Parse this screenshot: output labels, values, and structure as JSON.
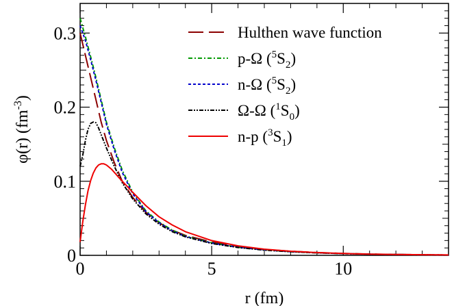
{
  "chart_data": {
    "type": "line",
    "xlabel": "r (fm)",
    "ylabel_parts": {
      "main": "φ(r) (fm",
      "exp": "-3",
      "close": ")"
    },
    "xlim": [
      0,
      14
    ],
    "ylim": [
      0,
      0.34
    ],
    "x_ticks": [
      0,
      5,
      10
    ],
    "y_ticks": [
      0,
      0.1,
      0.2,
      0.3
    ],
    "y_tick_labels": [
      "0",
      "0.1",
      "0.2",
      "0.3"
    ],
    "grid": false,
    "legend_placement": "top-right",
    "series": [
      {
        "name": "Hulthen wave function",
        "legend": {
          "main": "Hulthen wave function",
          "sup": "",
          "sub": "",
          "tail": ""
        },
        "color": "#8b0000",
        "dash": "22,8",
        "points": [
          [
            0,
            0.3
          ],
          [
            0.2,
            0.27
          ],
          [
            0.4,
            0.24
          ],
          [
            0.6,
            0.21
          ],
          [
            0.8,
            0.18
          ],
          [
            1.0,
            0.155
          ],
          [
            1.3,
            0.125
          ],
          [
            1.6,
            0.1
          ],
          [
            2.0,
            0.078
          ],
          [
            2.5,
            0.058
          ],
          [
            3.0,
            0.044
          ],
          [
            3.5,
            0.034
          ],
          [
            4.0,
            0.027
          ],
          [
            5.0,
            0.018
          ],
          [
            6.0,
            0.012
          ],
          [
            7.0,
            0.008
          ],
          [
            8.0,
            0.0055
          ],
          [
            9.0,
            0.0038
          ],
          [
            10.0,
            0.0026
          ],
          [
            11.0,
            0.0018
          ],
          [
            12.0,
            0.0012
          ],
          [
            13.0,
            0.0008
          ],
          [
            14.0,
            0.0005
          ]
        ]
      },
      {
        "name": "p-Ω (5S2)",
        "legend": {
          "main": "p-Ω (",
          "sup": "5",
          "sub": "2",
          "tail": ")"
        },
        "color": "#009900",
        "dash": "6,3,2,3",
        "points": [
          [
            0,
            0.32
          ],
          [
            0.2,
            0.295
          ],
          [
            0.4,
            0.268
          ],
          [
            0.6,
            0.24
          ],
          [
            0.8,
            0.21
          ],
          [
            1.0,
            0.18
          ],
          [
            1.3,
            0.145
          ],
          [
            1.6,
            0.115
          ],
          [
            2.0,
            0.085
          ],
          [
            2.5,
            0.06
          ],
          [
            3.0,
            0.045
          ],
          [
            3.5,
            0.034
          ],
          [
            4.0,
            0.026
          ],
          [
            5.0,
            0.017
          ],
          [
            6.0,
            0.011
          ],
          [
            7.0,
            0.0075
          ],
          [
            8.0,
            0.005
          ],
          [
            9.0,
            0.0034
          ],
          [
            10.0,
            0.0023
          ],
          [
            11.0,
            0.0016
          ],
          [
            12.0,
            0.0011
          ],
          [
            13.0,
            0.0007
          ],
          [
            14.0,
            0.0005
          ]
        ]
      },
      {
        "name": "n-Ω (5S2)",
        "legend": {
          "main": "n-Ω (",
          "sup": "5",
          "sub": "2",
          "tail": ")"
        },
        "color": "#0000cc",
        "dash": "4,3",
        "points": [
          [
            0,
            0.31
          ],
          [
            0.2,
            0.29
          ],
          [
            0.4,
            0.264
          ],
          [
            0.6,
            0.236
          ],
          [
            0.8,
            0.207
          ],
          [
            1.0,
            0.177
          ],
          [
            1.3,
            0.142
          ],
          [
            1.6,
            0.112
          ],
          [
            2.0,
            0.083
          ],
          [
            2.5,
            0.059
          ],
          [
            3.0,
            0.044
          ],
          [
            3.5,
            0.033
          ],
          [
            4.0,
            0.0255
          ],
          [
            5.0,
            0.0165
          ],
          [
            6.0,
            0.011
          ],
          [
            7.0,
            0.0074
          ],
          [
            8.0,
            0.005
          ],
          [
            9.0,
            0.0034
          ],
          [
            10.0,
            0.0023
          ],
          [
            11.0,
            0.0016
          ],
          [
            12.0,
            0.0011
          ],
          [
            13.0,
            0.0007
          ],
          [
            14.0,
            0.0005
          ]
        ]
      },
      {
        "name": "Ω-Ω (1S0)",
        "legend": {
          "main": "Ω-Ω (",
          "sup": "1",
          "sub": "0",
          "tail": ")"
        },
        "color": "#000000",
        "dash": "6,2,2,2,2,2",
        "points": [
          [
            0,
            0.12
          ],
          [
            0.1,
            0.135
          ],
          [
            0.2,
            0.155
          ],
          [
            0.3,
            0.17
          ],
          [
            0.4,
            0.178
          ],
          [
            0.5,
            0.18
          ],
          [
            0.6,
            0.179
          ],
          [
            0.7,
            0.172
          ],
          [
            0.8,
            0.163
          ],
          [
            1.0,
            0.145
          ],
          [
            1.3,
            0.12
          ],
          [
            1.6,
            0.098
          ],
          [
            2.0,
            0.076
          ],
          [
            2.5,
            0.056
          ],
          [
            3.0,
            0.042
          ],
          [
            3.5,
            0.032
          ],
          [
            4.0,
            0.025
          ],
          [
            5.0,
            0.016
          ],
          [
            6.0,
            0.0105
          ],
          [
            7.0,
            0.007
          ],
          [
            8.0,
            0.0048
          ],
          [
            9.0,
            0.0033
          ],
          [
            10.0,
            0.0023
          ],
          [
            11.0,
            0.0016
          ],
          [
            12.0,
            0.0011
          ],
          [
            13.0,
            0.0007
          ],
          [
            14.0,
            0.0005
          ]
        ]
      },
      {
        "name": "n-p (3S1)",
        "legend": {
          "main": "n-p (",
          "sup": "3",
          "sub": "1",
          "tail": ")"
        },
        "color": "#ee0000",
        "dash": "",
        "points": [
          [
            0,
            0.018
          ],
          [
            0.1,
            0.045
          ],
          [
            0.2,
            0.068
          ],
          [
            0.3,
            0.087
          ],
          [
            0.4,
            0.101
          ],
          [
            0.5,
            0.111
          ],
          [
            0.6,
            0.118
          ],
          [
            0.7,
            0.122
          ],
          [
            0.8,
            0.1235
          ],
          [
            0.9,
            0.1235
          ],
          [
            1.0,
            0.122
          ],
          [
            1.2,
            0.116
          ],
          [
            1.5,
            0.104
          ],
          [
            2.0,
            0.085
          ],
          [
            2.5,
            0.067
          ],
          [
            3.0,
            0.052
          ],
          [
            3.5,
            0.041
          ],
          [
            4.0,
            0.032
          ],
          [
            5.0,
            0.02
          ],
          [
            6.0,
            0.0128
          ],
          [
            7.0,
            0.0083
          ],
          [
            8.0,
            0.0055
          ],
          [
            9.0,
            0.0037
          ],
          [
            10.0,
            0.0025
          ],
          [
            11.0,
            0.0017
          ],
          [
            12.0,
            0.0012
          ],
          [
            13.0,
            0.0008
          ],
          [
            14.0,
            0.0006
          ]
        ]
      }
    ]
  }
}
